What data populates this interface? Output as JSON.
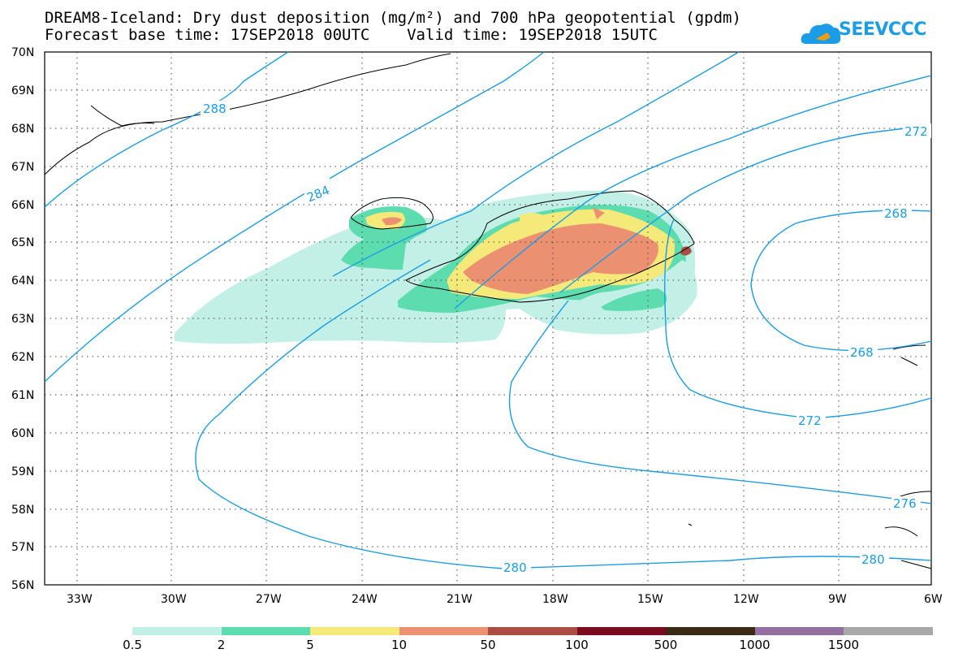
{
  "header": {
    "title_line1": "DREAM8-Iceland: Dry dust deposition (mg/m²) and 700 hPa geopotential (gpdm)",
    "title_line2": "Forecast base time: 17SEP2018 00UTC    Valid time: 19SEP2018 15UTC",
    "logo_text": "SEEVCCC"
  },
  "map": {
    "lat_labels": [
      "70N",
      "69N",
      "68N",
      "67N",
      "66N",
      "65N",
      "64N",
      "63N",
      "62N",
      "61N",
      "60N",
      "59N",
      "58N",
      "57N",
      "56N"
    ],
    "lon_labels": [
      "33W",
      "30W",
      "27W",
      "24W",
      "21W",
      "18W",
      "15W",
      "12W",
      "9W",
      "6W"
    ],
    "contour_labels": [
      "288",
      "284",
      "272",
      "268",
      "268",
      "272",
      "276",
      "280",
      "280"
    ],
    "colors": {
      "contour": "#1a9de6",
      "land_outline": "#000000"
    }
  },
  "legend": {
    "labels": [
      "0.5",
      "2",
      "5",
      "10",
      "50",
      "100",
      "500",
      "1000",
      "1500"
    ],
    "colors": [
      "#c3f0e6",
      "#5ddcb0",
      "#f5e97a",
      "#eb9070",
      "#a84e42",
      "#7a0a1e",
      "#3b2a14",
      "#9470a0",
      "#a8a8a8"
    ]
  }
}
